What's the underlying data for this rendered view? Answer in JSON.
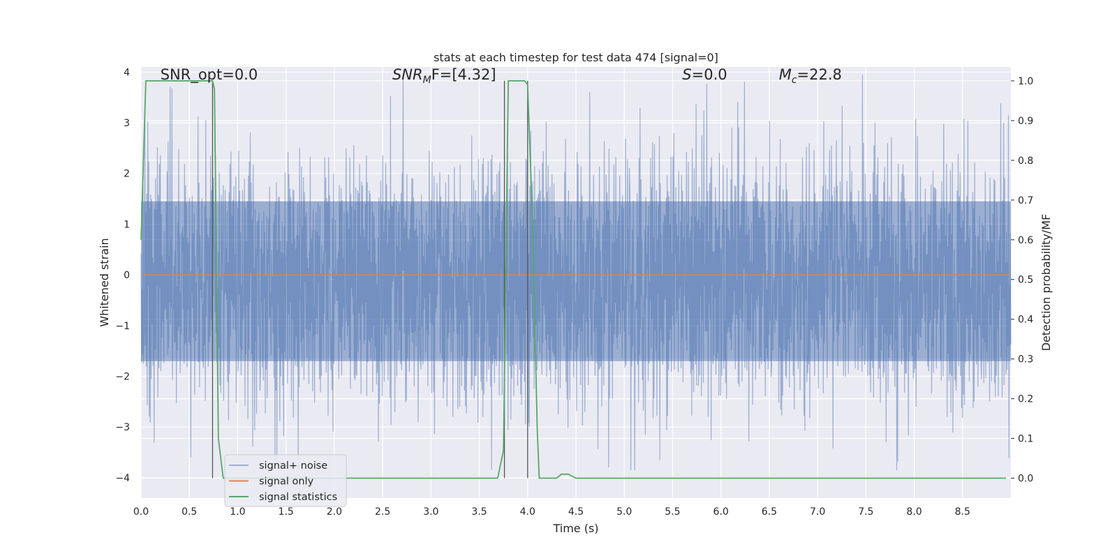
{
  "chart_data": {
    "type": "line",
    "title": "stats at each timestep for test data 474 [signal=0]",
    "xlabel": "Time (s)",
    "ylabel_left": "Whitened strain",
    "ylabel_right": "Detection probability/MF",
    "xlim": [
      0.0,
      9.0
    ],
    "ylim_left": [
      -4.4,
      4.1
    ],
    "ylim_right": [
      -0.05,
      1.035
    ],
    "x_ticks": [
      0.0,
      0.5,
      1.0,
      1.5,
      2.0,
      2.5,
      3.0,
      3.5,
      4.0,
      4.5,
      5.0,
      5.5,
      6.0,
      6.5,
      7.0,
      7.5,
      8.0,
      8.5
    ],
    "x_tick_labels": [
      "0.0",
      "0.5",
      "1.0",
      "1.5",
      "2.0",
      "2.5",
      "3.0",
      "3.5",
      "4.0",
      "4.5",
      "5.0",
      "5.5",
      "6.0",
      "6.5",
      "7.0",
      "7.5",
      "8.0",
      "8.5"
    ],
    "y_ticks_left": [
      4,
      3,
      2,
      1,
      0,
      -1,
      -2,
      -3,
      -4
    ],
    "y_tick_labels_left": [
      "4",
      "3",
      "2",
      "1",
      "0",
      "−1",
      "−2",
      "−3",
      "−4"
    ],
    "y_ticks_right": [
      1.0,
      0.9,
      0.8,
      0.7,
      0.6,
      0.5,
      0.4,
      0.3,
      0.2,
      0.1,
      0.0
    ],
    "y_tick_labels_right": [
      "1.0",
      "0.9",
      "0.8",
      "0.7",
      "0.6",
      "0.5",
      "0.4",
      "0.3",
      "0.2",
      "0.1",
      "0.0"
    ],
    "grid": true,
    "legend_position": "lower-left",
    "annotations": [
      {
        "text": "SNR_opt=0.0",
        "x": 0.2,
        "y": 3.95
      },
      {
        "base": "SNR",
        "sub": "M",
        "suffix": "F=[4.32]",
        "x": 2.6,
        "y": 3.95
      },
      {
        "base": "S",
        "sub": "",
        "suffix": "=0.0",
        "x": 5.6,
        "y": 3.95
      },
      {
        "base": "M",
        "sub": "c",
        "suffix": "=22.8",
        "x": 6.6,
        "y": 3.95
      }
    ],
    "series": [
      {
        "name": "signal+ noise",
        "color": "#4c72b0",
        "alpha": 0.5,
        "kind": "noise",
        "core_band": [
          -1.7,
          1.45
        ],
        "peak_max": 3.95,
        "peak_min": -3.85
      },
      {
        "name": "signal only",
        "color": "#dd8452",
        "kind": "constant",
        "value": 0.0
      },
      {
        "name": "signal statistics",
        "color": "#55a868",
        "axis": "right",
        "x": [
          0.0,
          0.05,
          0.1,
          0.2,
          0.3,
          0.4,
          0.5,
          0.6,
          0.7,
          0.74,
          0.76,
          0.8,
          0.85,
          0.9,
          1.5,
          2.0,
          2.5,
          3.0,
          3.5,
          3.69,
          3.75,
          3.8,
          3.9,
          3.97,
          4.0,
          4.05,
          4.1,
          4.12,
          4.3,
          4.35,
          4.42,
          4.5,
          4.6,
          5.0,
          6.0,
          7.0,
          8.0,
          8.95
        ],
        "y": [
          0.6,
          1.0,
          1.0,
          1.0,
          1.0,
          1.0,
          1.0,
          1.0,
          1.0,
          1.0,
          0.98,
          0.1,
          0.0,
          0.0,
          0.0,
          0.0,
          0.0,
          0.0,
          0.0,
          0.0,
          0.07,
          1.0,
          1.0,
          1.0,
          0.99,
          0.65,
          0.12,
          0.0,
          0.0,
          0.01,
          0.01,
          0.0,
          0.0,
          0.0,
          0.0,
          0.0,
          0.0,
          0.0
        ]
      }
    ],
    "vlines": [
      {
        "x": 0.74,
        "color": "#555555"
      },
      {
        "x": 3.76,
        "color": "#555555"
      },
      {
        "x": 4.0,
        "color": "#555555"
      }
    ]
  }
}
